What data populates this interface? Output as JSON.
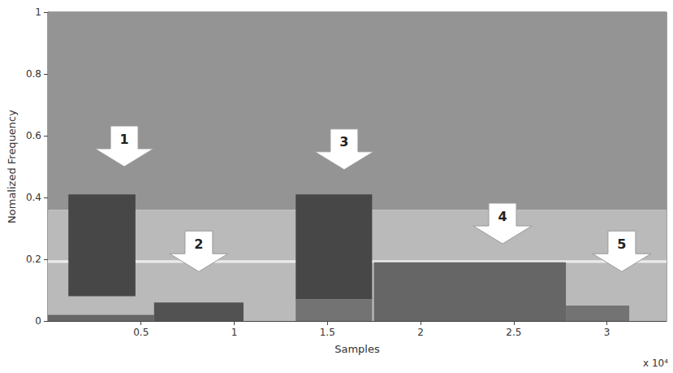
{
  "chart_data": {
    "type": "spectrogram",
    "xlabel": "Samples",
    "ylabel": "Nomalized Frequency",
    "x_multiplier": "x 10⁴",
    "xlim": [
      0,
      3.32
    ],
    "xticks": [
      0.5,
      1,
      1.5,
      2,
      2.5,
      3
    ],
    "ylim": [
      0,
      1
    ],
    "yticks": [
      0,
      0.2,
      0.4,
      0.6,
      0.8,
      1
    ],
    "grid": false,
    "regions": [
      {
        "x": [
          0,
          3.32
        ],
        "y": [
          0.36,
          1
        ],
        "level": 0.42
      },
      {
        "x": [
          0,
          3.32
        ],
        "y": [
          0,
          0.36
        ],
        "level": 0.27
      },
      {
        "x": [
          0,
          3.32
        ],
        "y": [
          0.188,
          0.197
        ],
        "level": 0.08
      },
      {
        "x": [
          0,
          0.57
        ],
        "y": [
          0,
          0.02
        ],
        "level": 0.6
      },
      {
        "x": [
          0.11,
          0.47
        ],
        "y": [
          0.08,
          0.41
        ],
        "level": 0.72
      },
      {
        "x": [
          0.57,
          1.05
        ],
        "y": [
          0,
          0.06
        ],
        "level": 0.68
      },
      {
        "x": [
          1.33,
          1.74
        ],
        "y": [
          0.07,
          0.41
        ],
        "level": 0.72
      },
      {
        "x": [
          1.33,
          1.74
        ],
        "y": [
          0,
          0.07
        ],
        "level": 0.55
      },
      {
        "x": [
          1.75,
          2.78
        ],
        "y": [
          0,
          0.19
        ],
        "level": 0.6
      },
      {
        "x": [
          2.78,
          3.12
        ],
        "y": [
          0,
          0.05
        ],
        "level": 0.55
      }
    ],
    "annotations": [
      {
        "text": "1",
        "x": 0.41,
        "y": 0.5
      },
      {
        "text": "2",
        "x": 0.81,
        "y": 0.16
      },
      {
        "text": "3",
        "x": 1.59,
        "y": 0.49
      },
      {
        "text": "4",
        "x": 2.44,
        "y": 0.25
      },
      {
        "text": "5",
        "x": 3.08,
        "y": 0.16
      }
    ]
  }
}
